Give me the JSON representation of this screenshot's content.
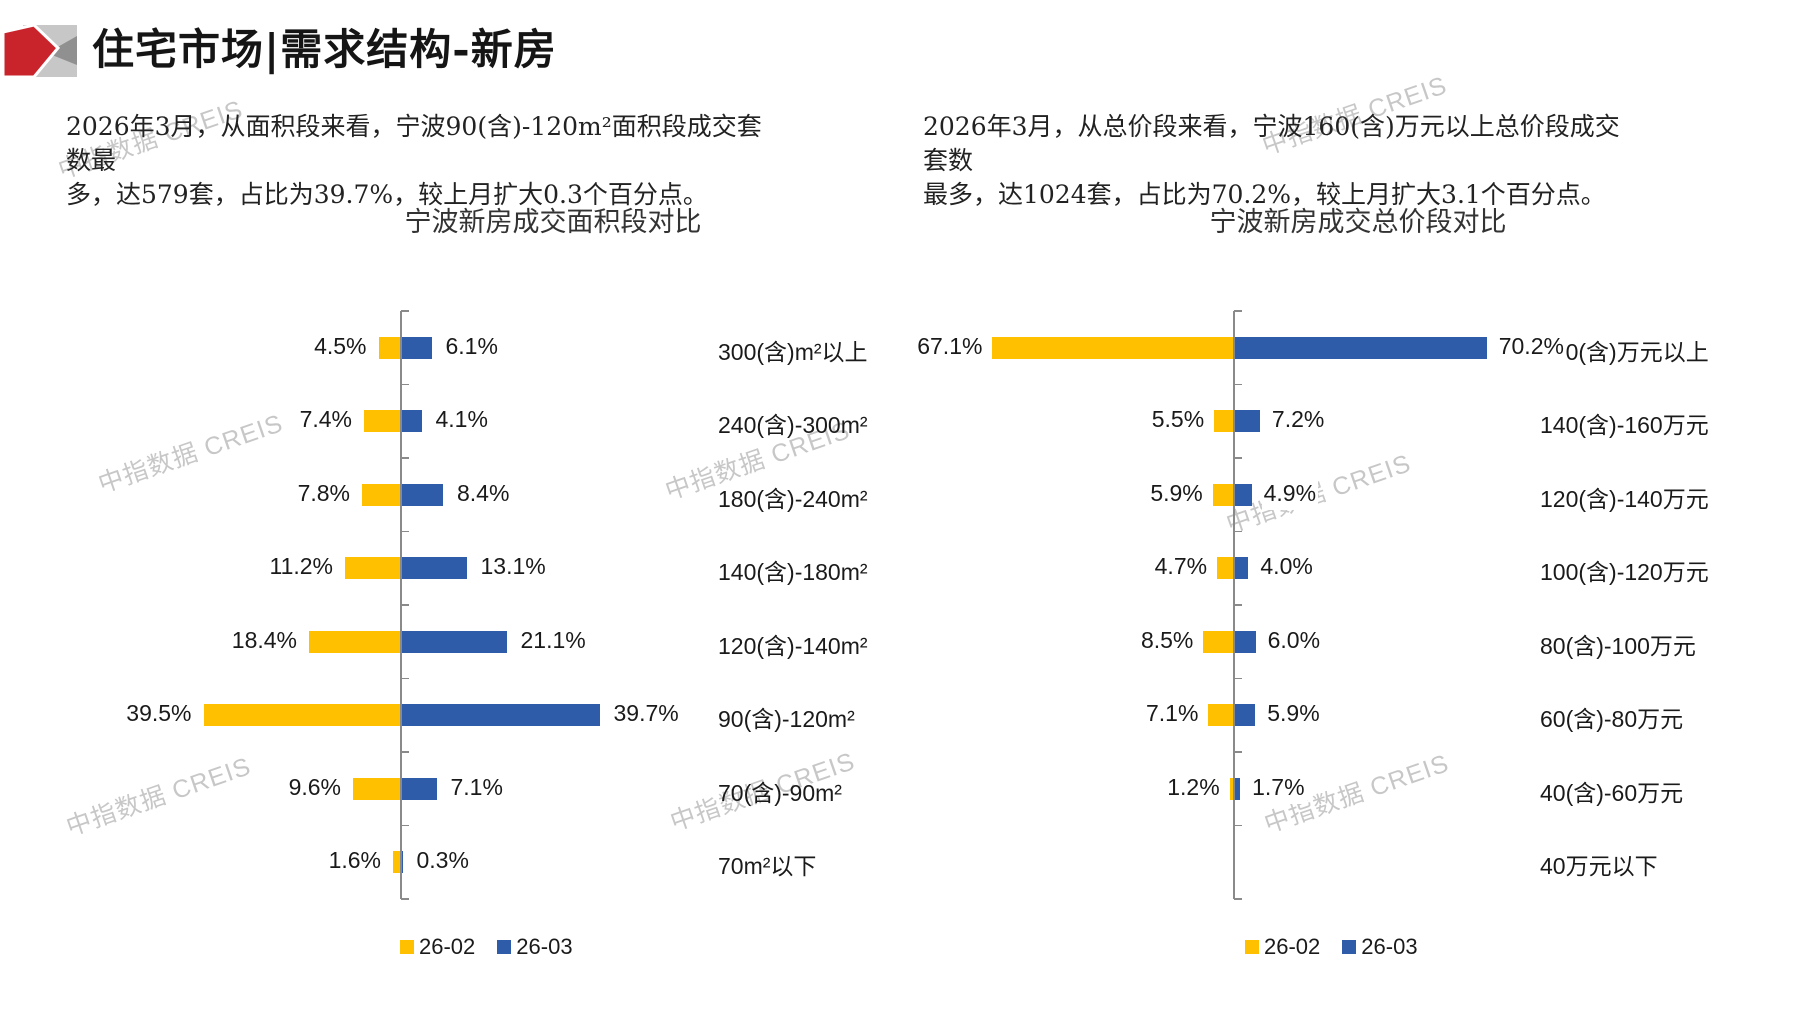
{
  "header": {
    "title": "住宅市场|需求结构-新房"
  },
  "watermark": {
    "text": "中指数据 CREIS"
  },
  "colors": {
    "series_2602": "#FFC000",
    "series_2603": "#2F5CA8",
    "axis": "#8A8A8A",
    "logo_red": "#C9242B",
    "logo_gray_light": "#C7C7C7",
    "logo_gray_dark": "#909090"
  },
  "legend": {
    "items": [
      {
        "label": "26-02",
        "color": "#FFC000"
      },
      {
        "label": "26-03",
        "color": "#2F5CA8"
      }
    ]
  },
  "summaries": [
    {
      "line1": "2026年3月，从面积段来看，宁波90(含)-120m²面积段成交套数最",
      "line2": "多，达579套，占比为39.7%，较上月扩大0.3个百分点。"
    },
    {
      "line1": "2026年3月，从总价段来看，宁波160(含)万元以上总价段成交套数",
      "line2": "最多，达1024套，占比为70.2%，较上月扩大3.1个百分点。"
    }
  ],
  "chart_data": [
    {
      "type": "bar",
      "orientation": "horizontal-tornado",
      "title": "宁波新房成交面积段对比",
      "value_format": "percent_1dp",
      "xlim_pct": [
        0,
        45
      ],
      "legend_position": "bottom",
      "grid": false,
      "categories": [
        "300(含)m²以上",
        "240(含)-300m²",
        "180(含)-240m²",
        "140(含)-180m²",
        "120(含)-140m²",
        "90(含)-120m²",
        "70(含)-90m²",
        "70m²以下"
      ],
      "series": [
        {
          "name": "26-02",
          "color": "#FFC000",
          "side": "left",
          "values": [
            4.5,
            7.4,
            7.8,
            11.2,
            18.4,
            39.5,
            9.6,
            1.6
          ]
        },
        {
          "name": "26-03",
          "color": "#2F5CA8",
          "side": "right",
          "values": [
            6.1,
            4.1,
            8.4,
            13.1,
            21.1,
            39.7,
            7.1,
            0.3
          ]
        }
      ]
    },
    {
      "type": "bar",
      "orientation": "horizontal-tornado",
      "title": "宁波新房成交总价段对比",
      "value_format": "percent_1dp",
      "xlim_pct": [
        0,
        75
      ],
      "legend_position": "bottom",
      "grid": false,
      "categories": [
        "160(含)万元以上",
        "140(含)-160万元",
        "120(含)-140万元",
        "100(含)-120万元",
        "80(含)-100万元",
        "60(含)-80万元",
        "40(含)-60万元",
        "40万元以下"
      ],
      "series": [
        {
          "name": "26-02",
          "color": "#FFC000",
          "side": "left",
          "values": [
            67.1,
            5.5,
            5.9,
            4.7,
            8.5,
            7.1,
            1.2,
            null
          ]
        },
        {
          "name": "26-03",
          "color": "#2F5CA8",
          "side": "right",
          "values": [
            70.2,
            7.2,
            4.9,
            4.0,
            6.0,
            5.9,
            1.7,
            null
          ]
        }
      ]
    }
  ]
}
